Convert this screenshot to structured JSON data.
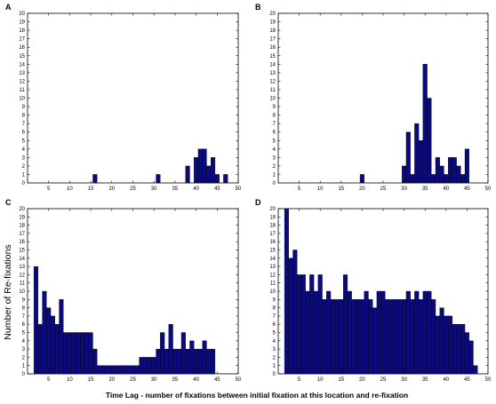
{
  "figure": {
    "xlabel": "Time Lag - number of fixations between initial fixation at this location and re-fixation",
    "ylabel": "Number of Re-fixations"
  },
  "colors": {
    "bar_fill": "#0a0a7a",
    "bar_edge": "#000000",
    "axes": "#000000",
    "background": "#ffffff"
  },
  "chart_data": [
    {
      "panel": "A",
      "type": "bar",
      "xlim": [
        0,
        50
      ],
      "ylim": [
        0,
        20
      ],
      "xticks": [
        5,
        10,
        15,
        20,
        25,
        30,
        35,
        40,
        45,
        50
      ],
      "yticks": [
        0,
        1,
        2,
        3,
        4,
        5,
        6,
        7,
        8,
        9,
        10,
        11,
        12,
        13,
        14,
        15,
        16,
        17,
        18,
        19,
        20
      ],
      "x": [
        16,
        31,
        38,
        40,
        41,
        42,
        43,
        44,
        45,
        47
      ],
      "values": [
        1,
        1,
        2,
        3,
        4,
        4,
        2,
        3,
        1,
        1
      ]
    },
    {
      "panel": "B",
      "type": "bar",
      "xlim": [
        0,
        50
      ],
      "ylim": [
        0,
        20
      ],
      "xticks": [
        5,
        10,
        15,
        20,
        25,
        30,
        35,
        40,
        45,
        50
      ],
      "yticks": [
        0,
        1,
        2,
        3,
        4,
        5,
        6,
        7,
        8,
        9,
        10,
        11,
        12,
        13,
        14,
        15,
        16,
        17,
        18,
        19,
        20
      ],
      "x": [
        20,
        30,
        31,
        32,
        33,
        34,
        35,
        36,
        37,
        38,
        39,
        40,
        41,
        42,
        43,
        44,
        45
      ],
      "values": [
        1,
        2,
        6,
        1,
        7,
        5,
        14,
        10,
        1,
        3,
        2,
        1,
        3,
        3,
        2,
        1,
        4
      ]
    },
    {
      "panel": "C",
      "type": "bar",
      "xlim": [
        0,
        50
      ],
      "ylim": [
        0,
        20
      ],
      "xticks": [
        5,
        10,
        15,
        20,
        25,
        30,
        35,
        40,
        45,
        50
      ],
      "yticks": [
        0,
        1,
        2,
        3,
        4,
        5,
        6,
        7,
        8,
        9,
        10,
        11,
        12,
        13,
        14,
        15,
        16,
        17,
        18,
        19,
        20
      ],
      "x": [
        2,
        3,
        4,
        5,
        6,
        7,
        8,
        9,
        10,
        11,
        12,
        13,
        14,
        15,
        16,
        17,
        18,
        19,
        20,
        21,
        22,
        23,
        24,
        25,
        26,
        27,
        28,
        29,
        30,
        31,
        32,
        33,
        34,
        35,
        36,
        37,
        38,
        39,
        40,
        41,
        42,
        43,
        44
      ],
      "values": [
        13,
        6,
        10,
        8,
        7,
        6,
        9,
        5,
        5,
        5,
        5,
        5,
        5,
        5,
        3,
        1,
        1,
        1,
        1,
        1,
        1,
        1,
        1,
        1,
        1,
        2,
        2,
        2,
        2,
        3,
        5,
        3,
        6,
        3,
        3,
        5,
        3,
        4,
        3,
        3,
        4,
        3,
        3
      ]
    },
    {
      "panel": "D",
      "type": "bar",
      "xlim": [
        0,
        50
      ],
      "ylim": [
        0,
        20
      ],
      "xticks": [
        5,
        10,
        15,
        20,
        25,
        30,
        35,
        40,
        45,
        50
      ],
      "yticks": [
        0,
        1,
        2,
        3,
        4,
        5,
        6,
        7,
        8,
        9,
        10,
        11,
        12,
        13,
        14,
        15,
        16,
        17,
        18,
        19,
        20
      ],
      "x": [
        2,
        3,
        4,
        5,
        6,
        7,
        8,
        9,
        10,
        11,
        12,
        13,
        14,
        15,
        16,
        17,
        18,
        19,
        20,
        21,
        22,
        23,
        24,
        25,
        26,
        27,
        28,
        29,
        30,
        31,
        32,
        33,
        34,
        35,
        36,
        37,
        38,
        39,
        40,
        41,
        42,
        43,
        44,
        45,
        46,
        47
      ],
      "values": [
        20,
        14,
        15,
        12,
        12,
        10,
        12,
        10,
        12,
        9,
        10,
        9,
        9,
        9,
        12,
        10,
        9,
        9,
        9,
        10,
        9,
        8,
        10,
        10,
        9,
        9,
        9,
        9,
        9,
        10,
        9,
        10,
        9,
        10,
        10,
        9,
        7,
        8,
        7,
        7,
        6,
        6,
        6,
        5,
        4,
        1
      ]
    }
  ]
}
